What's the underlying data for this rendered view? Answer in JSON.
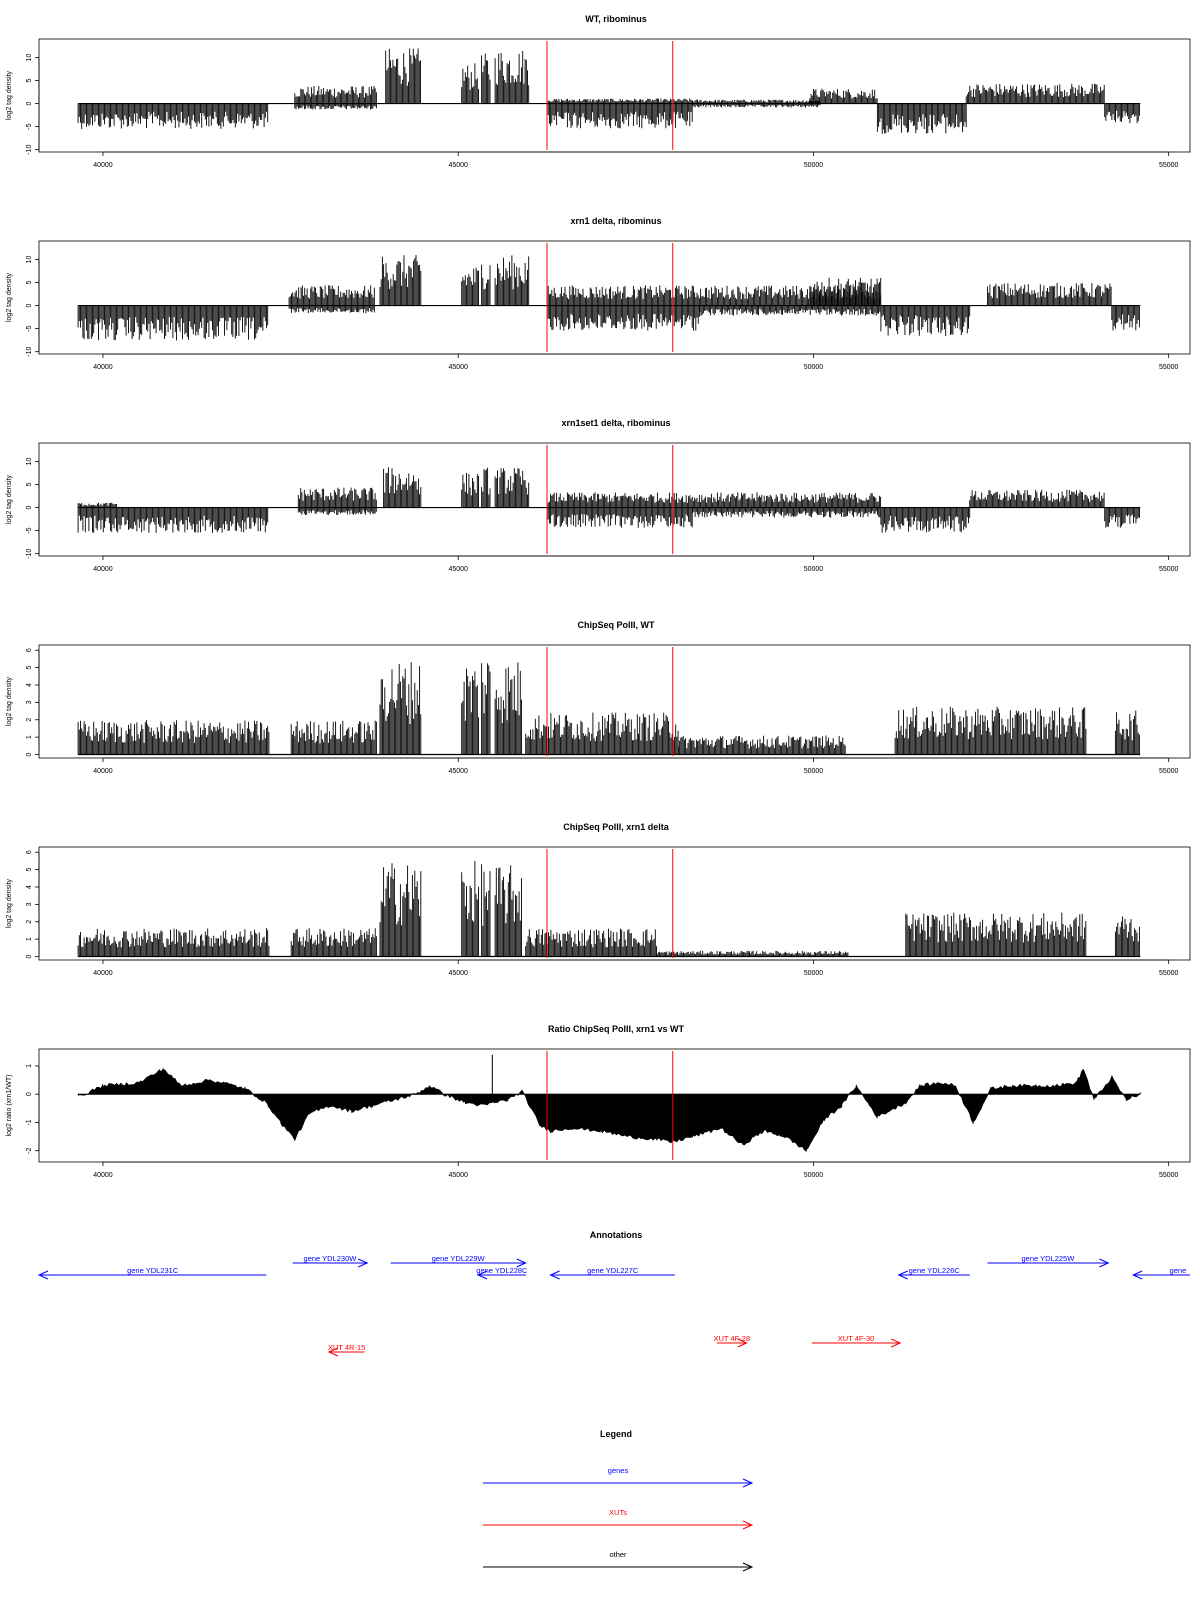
{
  "colors": {
    "signal": "#000000",
    "marker": "#ff0000",
    "gene": "#0000ff",
    "xut": "#ff0000",
    "other": "#000000"
  },
  "xaxis": {
    "xlim": [
      39100,
      55300
    ],
    "ticks": [
      40000,
      45000,
      50000,
      55000
    ],
    "tick_labels": [
      "40000",
      "45000",
      "50000",
      "55000"
    ]
  },
  "chart_data": [
    {
      "type": "area",
      "title": "WT, ribominus",
      "ylabel": "log2 tag density",
      "ylim": [
        -10.5,
        14
      ],
      "yticks": [
        -10,
        -5,
        0,
        5,
        10
      ],
      "ytick_labels": [
        "-10",
        "-5",
        "0",
        "5",
        "10"
      ],
      "markers_x": [
        46250,
        48020
      ],
      "segments": [
        {
          "x": [
            39650,
            42320
          ],
          "y": -5
        },
        {
          "x": [
            42700,
            43850
          ],
          "y": 3.5
        },
        {
          "x": [
            42700,
            43850
          ],
          "y": -1.2
        },
        {
          "x": [
            43980,
            44480
          ],
          "y": 11
        },
        {
          "x": [
            45050,
            45300
          ],
          "y": 8
        },
        {
          "x": [
            45330,
            45450
          ],
          "y": 10
        },
        {
          "x": [
            45520,
            46000
          ],
          "y": 11
        },
        {
          "x": [
            46250,
            48300
          ],
          "y": -5
        },
        {
          "x": [
            46250,
            48300
          ],
          "y": 1
        },
        {
          "x": [
            48300,
            50100
          ],
          "y": 0.8
        },
        {
          "x": [
            48300,
            50100
          ],
          "y": -0.8
        },
        {
          "x": [
            49950,
            50900
          ],
          "y": 3
        },
        {
          "x": [
            50900,
            52150
          ],
          "y": -6
        },
        {
          "x": [
            52150,
            54100
          ],
          "y": 4
        },
        {
          "x": [
            54100,
            54600
          ],
          "y": -4
        }
      ]
    },
    {
      "type": "area",
      "title": "xrn1 delta, ribominus",
      "ylabel": "log2 tag density",
      "ylim": [
        -10.5,
        14
      ],
      "yticks": [
        -10,
        -5,
        0,
        5,
        10
      ],
      "ytick_labels": [
        "-10",
        "-5",
        "0",
        "5",
        "10"
      ],
      "markers_x": [
        46250,
        48020
      ],
      "segments": [
        {
          "x": [
            39650,
            42330
          ],
          "y": -7
        },
        {
          "x": [
            42620,
            43820
          ],
          "y": 4
        },
        {
          "x": [
            42620,
            43820
          ],
          "y": -1.5
        },
        {
          "x": [
            43900,
            44480
          ],
          "y": 10
        },
        {
          "x": [
            45050,
            45300
          ],
          "y": 8
        },
        {
          "x": [
            45330,
            45450
          ],
          "y": 10
        },
        {
          "x": [
            45520,
            46000
          ],
          "y": 10
        },
        {
          "x": [
            46250,
            50950
          ],
          "y": 4
        },
        {
          "x": [
            46250,
            48400
          ],
          "y": -5
        },
        {
          "x": [
            48400,
            50950
          ],
          "y": -2
        },
        {
          "x": [
            49950,
            50950
          ],
          "y": 5.5
        },
        {
          "x": [
            50950,
            52200
          ],
          "y": -6
        },
        {
          "x": [
            52450,
            54200
          ],
          "y": 4.5
        },
        {
          "x": [
            54200,
            54600
          ],
          "y": -5
        }
      ]
    },
    {
      "type": "area",
      "title": "xrn1set1 delta, ribominus",
      "ylabel": "log2 tag density",
      "ylim": [
        -10.5,
        14
      ],
      "yticks": [
        -10,
        -5,
        0,
        5,
        10
      ],
      "ytick_labels": [
        "-10",
        "-5",
        "0",
        "5",
        "10"
      ],
      "markers_x": [
        46250,
        48020
      ],
      "segments": [
        {
          "x": [
            39650,
            42320
          ],
          "y": -5
        },
        {
          "x": [
            39650,
            40200
          ],
          "y": 1
        },
        {
          "x": [
            42750,
            43850
          ],
          "y": 4
        },
        {
          "x": [
            42750,
            43850
          ],
          "y": -1.5
        },
        {
          "x": [
            43950,
            44480
          ],
          "y": 8
        },
        {
          "x": [
            45050,
            45300
          ],
          "y": 7
        },
        {
          "x": [
            45330,
            45450
          ],
          "y": 8
        },
        {
          "x": [
            45520,
            46000
          ],
          "y": 8
        },
        {
          "x": [
            46250,
            50950
          ],
          "y": 3
        },
        {
          "x": [
            46250,
            48300
          ],
          "y": -4
        },
        {
          "x": [
            48300,
            50950
          ],
          "y": -2
        },
        {
          "x": [
            50950,
            52200
          ],
          "y": -5
        },
        {
          "x": [
            52200,
            54100
          ],
          "y": 3.5
        },
        {
          "x": [
            54100,
            54600
          ],
          "y": -4
        }
      ]
    },
    {
      "type": "area",
      "title": "ChipSeq PolII, WT",
      "ylabel": "log2 tag density",
      "ylim": [
        -0.2,
        6.3
      ],
      "yticks": [
        0,
        1,
        2,
        3,
        4,
        5,
        6
      ],
      "ytick_labels": [
        "0",
        "1",
        "2",
        "3",
        "4",
        "5",
        "6"
      ],
      "markers_x": [
        46250,
        48020
      ],
      "segments": [
        {
          "x": [
            39650,
            42350
          ],
          "y": 1.8
        },
        {
          "x": [
            42650,
            43850
          ],
          "y": 1.8
        },
        {
          "x": [
            43900,
            44480
          ],
          "y": 5
        },
        {
          "x": [
            45050,
            45300
          ],
          "y": 5
        },
        {
          "x": [
            45330,
            45450
          ],
          "y": 5.5
        },
        {
          "x": [
            45520,
            45900
          ],
          "y": 5
        },
        {
          "x": [
            45950,
            48100
          ],
          "y": 2.2
        },
        {
          "x": [
            48100,
            50450
          ],
          "y": 1
        },
        {
          "x": [
            51150,
            53850
          ],
          "y": 2.5
        },
        {
          "x": [
            54250,
            54600
          ],
          "y": 2.3
        }
      ]
    },
    {
      "type": "area",
      "title": "ChipSeq PolII, xrn1 delta",
      "ylabel": "log2 tag density",
      "ylim": [
        -0.2,
        6.3
      ],
      "yticks": [
        0,
        1,
        2,
        3,
        4,
        5,
        6
      ],
      "ytick_labels": [
        "0",
        "1",
        "2",
        "3",
        "4",
        "5",
        "6"
      ],
      "markers_x": [
        46250,
        48020
      ],
      "segments": [
        {
          "x": [
            39650,
            42350
          ],
          "y": 1.5
        },
        {
          "x": [
            42650,
            43850
          ],
          "y": 1.5
        },
        {
          "x": [
            43900,
            44480
          ],
          "y": 5
        },
        {
          "x": [
            45050,
            45300
          ],
          "y": 5
        },
        {
          "x": [
            45330,
            45450
          ],
          "y": 5
        },
        {
          "x": [
            45520,
            45900
          ],
          "y": 4.8
        },
        {
          "x": [
            45950,
            47800
          ],
          "y": 1.5
        },
        {
          "x": [
            47800,
            50500
          ],
          "y": 0.3
        },
        {
          "x": [
            51300,
            53850
          ],
          "y": 2.3
        },
        {
          "x": [
            54250,
            54600
          ],
          "y": 2.3
        }
      ]
    },
    {
      "type": "area",
      "title": "Ratio ChipSeq PolII, xrn1 vs WT",
      "ylabel": "log2 ratio (xrn1/WT)",
      "ylim": [
        -2.4,
        1.6
      ],
      "yticks": [
        -2,
        -1,
        0,
        1
      ],
      "ytick_labels": [
        "-2",
        "-1",
        "0",
        "1"
      ],
      "markers_x": [
        46250,
        48020
      ],
      "series": {
        "x": [
          39650,
          40000,
          40500,
          40850,
          41100,
          41500,
          41700,
          42000,
          42300,
          42500,
          42700,
          42900,
          43200,
          43500,
          43800,
          44100,
          44400,
          44600,
          44800,
          45100,
          45350,
          45500,
          45700,
          45900,
          46150,
          46300,
          46600,
          47000,
          47400,
          47800,
          48000,
          48300,
          48700,
          49000,
          49300,
          49600,
          49900,
          50150,
          50400,
          50600,
          50900,
          51300,
          51500,
          51800,
          52000,
          52250,
          52500,
          52800,
          53100,
          53400,
          53700,
          53800,
          53950,
          54200,
          54400,
          54600
        ],
        "y": [
          -0.1,
          0.3,
          0.4,
          0.9,
          0.3,
          0.5,
          0.4,
          0.2,
          -0.3,
          -1.0,
          -1.6,
          -0.7,
          -0.4,
          -0.6,
          -0.4,
          -0.2,
          0.0,
          0.3,
          0.0,
          -0.3,
          -0.4,
          -0.3,
          -0.2,
          0.1,
          -1.1,
          -1.3,
          -1.2,
          -1.3,
          -1.5,
          -1.6,
          -1.7,
          -1.5,
          -1.2,
          -1.8,
          -1.3,
          -1.5,
          -2.0,
          -0.9,
          -0.4,
          0.3,
          -0.8,
          -0.3,
          0.3,
          0.4,
          0.3,
          -1.0,
          0.2,
          0.3,
          0.3,
          0.3,
          0.4,
          0.9,
          -0.2,
          0.6,
          -0.2,
          0.0
        ]
      }
    }
  ],
  "annotations": {
    "title": "Annotations",
    "genes": [
      {
        "label": "gene YDL231C",
        "x": [
          39050,
          42300
        ],
        "dir": -1,
        "row": 1
      },
      {
        "label": "gene YDL230W",
        "x": [
          42670,
          43720
        ],
        "dir": 1,
        "row": 0
      },
      {
        "label": "gene YDL229W",
        "x": [
          44050,
          45950
        ],
        "dir": 1,
        "row": 0
      },
      {
        "label": "gene YDL228C",
        "x": [
          45280,
          45950
        ],
        "dir": -1,
        "row": 1
      },
      {
        "label": "gene YDL227C",
        "x": [
          46300,
          48050
        ],
        "dir": -1,
        "row": 1
      },
      {
        "label": "gene YDL226C",
        "x": [
          51200,
          52200
        ],
        "dir": -1,
        "row": 1
      },
      {
        "label": "gene YDL225W",
        "x": [
          52450,
          54150
        ],
        "dir": 1,
        "row": 0
      },
      {
        "label": "gene",
        "x": [
          54500,
          55300
        ],
        "dir": -1,
        "row": 1
      }
    ],
    "xuts": [
      {
        "label": "XUT 4R-15",
        "x": [
          43180,
          43680
        ],
        "dir": -1
      },
      {
        "label": "XUT 4F-28",
        "x": [
          48640,
          49060
        ],
        "dir": 1
      },
      {
        "label": "XUT 4F-30",
        "x": [
          49980,
          51220
        ],
        "dir": 1
      }
    ]
  },
  "legend": {
    "title": "Legend",
    "items": [
      {
        "label": "genes",
        "color": "#0000ff"
      },
      {
        "label": "XUTs",
        "color": "#ff0000"
      },
      {
        "label": "other",
        "color": "#000000"
      }
    ]
  }
}
